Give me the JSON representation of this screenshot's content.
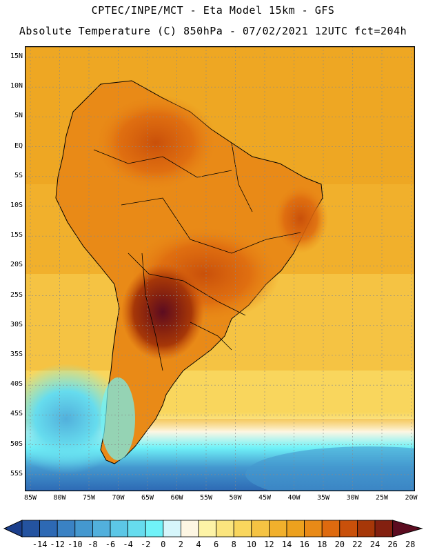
{
  "header": {
    "title_line1": "CPTEC/INPE/MCT -  Eta Model 15km - GFS",
    "title_line2": "Absolute Temperature (C) 850hPa - 07/02/2021 12UTC fct=204h"
  },
  "map": {
    "lat_labels": [
      "15N",
      "10N",
      "5N",
      "EQ",
      "5S",
      "10S",
      "15S",
      "20S",
      "25S",
      "30S",
      "35S",
      "40S",
      "45S",
      "50S",
      "55S"
    ],
    "lon_labels": [
      "85W",
      "80W",
      "75W",
      "70W",
      "65W",
      "60W",
      "55W",
      "50W",
      "45W",
      "40W",
      "35W",
      "30W",
      "25W",
      "20W"
    ]
  },
  "legend": {
    "labels": [
      "-14",
      "-12",
      "-10",
      "-8",
      "-6",
      "-4",
      "-2",
      "0",
      "2",
      "4",
      "6",
      "8",
      "10",
      "12",
      "14",
      "16",
      "18",
      "20",
      "22",
      "24",
      "26",
      "28"
    ],
    "colors": [
      "#1c3f8c",
      "#2453a0",
      "#2d69b4",
      "#3a82c4",
      "#4498cf",
      "#52b0dc",
      "#5cc7e6",
      "#66dcee",
      "#70f2f8",
      "#d6f6fb",
      "#fdf6e3",
      "#fdf3a6",
      "#fbe57e",
      "#f9d65d",
      "#f5c343",
      "#f1b02c",
      "#eda11e",
      "#e98a17",
      "#de6a0f",
      "#c9500a",
      "#a63708",
      "#832010",
      "#5c0c20"
    ]
  }
}
